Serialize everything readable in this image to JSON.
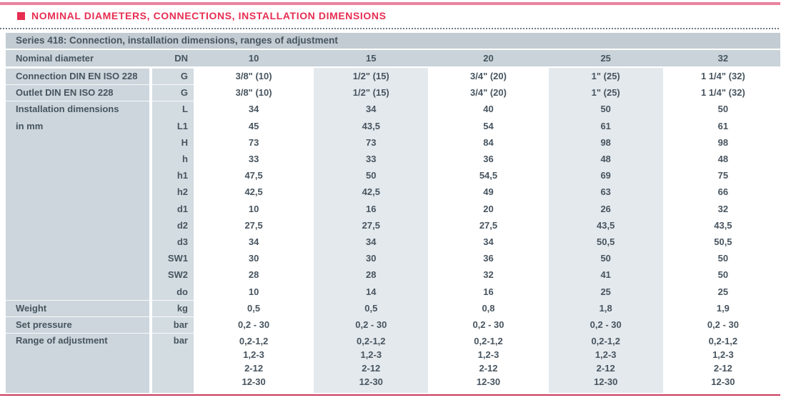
{
  "page": {
    "title": "NOMINAL DIAMETERS, CONNECTIONS, INSTALLATION DIMENSIONS"
  },
  "colors": {
    "accent": "#e72e52",
    "top_line": "#e9829e",
    "bottom_line": "#c93a5e",
    "header_bar_bg": "#c3ccd3",
    "row_header_bg": "#c9d3d9",
    "label_bg": "#ccd6dc",
    "unit_bg": "#d3dce1",
    "tint_column_bg": "#e4e9ed",
    "text": "#47545f"
  },
  "table": {
    "series_title": "Series 418: Connection, installation dimensions, ranges of adjustment",
    "header_row": {
      "label": "Nominal diameter",
      "unit": "DN",
      "values": [
        "10",
        "15",
        "20",
        "25",
        "32"
      ]
    },
    "rows": [
      {
        "label": "Connection DIN EN ISO 228",
        "unit": "G",
        "sep": true,
        "values": [
          "3/8\" (10)",
          "1/2\" (15)",
          "3/4\" (20)",
          "1\" (25)",
          "1 1/4\" (32)"
        ]
      },
      {
        "label": "Outlet DIN EN ISO 228",
        "unit": "G",
        "sep": true,
        "values": [
          "3/8\" (10)",
          "1/2\" (15)",
          "3/4\" (20)",
          "1\" (25)",
          "1 1/4\" (32)"
        ]
      },
      {
        "label": "Installation dimensions",
        "unit": "L",
        "sep": true,
        "values": [
          "34",
          "34",
          "40",
          "50",
          "50"
        ]
      },
      {
        "label": "in mm",
        "unit": "L1",
        "values": [
          "45",
          "43,5",
          "54",
          "61",
          "61"
        ]
      },
      {
        "label": "",
        "unit": "H",
        "values": [
          "73",
          "73",
          "84",
          "98",
          "98"
        ]
      },
      {
        "label": "",
        "unit": "h",
        "values": [
          "33",
          "33",
          "36",
          "48",
          "48"
        ]
      },
      {
        "label": "",
        "unit": "h1",
        "values": [
          "47,5",
          "50",
          "54,5",
          "69",
          "75"
        ]
      },
      {
        "label": "",
        "unit": "h2",
        "values": [
          "42,5",
          "42,5",
          "49",
          "63",
          "66"
        ]
      },
      {
        "label": "",
        "unit": "d1",
        "values": [
          "10",
          "16",
          "20",
          "26",
          "32"
        ]
      },
      {
        "label": "",
        "unit": "d2",
        "values": [
          "27,5",
          "27,5",
          "27,5",
          "43,5",
          "43,5"
        ]
      },
      {
        "label": "",
        "unit": "d3",
        "values": [
          "34",
          "34",
          "34",
          "50,5",
          "50,5"
        ]
      },
      {
        "label": "",
        "unit": "SW1",
        "values": [
          "30",
          "30",
          "36",
          "50",
          "50"
        ]
      },
      {
        "label": "",
        "unit": "SW2",
        "values": [
          "28",
          "28",
          "32",
          "41",
          "50"
        ]
      },
      {
        "label": "",
        "unit": "do",
        "values": [
          "10",
          "14",
          "16",
          "25",
          "25"
        ]
      },
      {
        "label": "Weight",
        "unit": "kg",
        "sep": true,
        "values": [
          "0,5",
          "0,5",
          "0,8",
          "1,8",
          "1,9"
        ]
      },
      {
        "label": "Set pressure",
        "unit": "bar",
        "sep": true,
        "values": [
          "0,2 - 30",
          "0,2 - 30",
          "0,2 - 30",
          "0,2 - 30",
          "0,2 - 30"
        ]
      },
      {
        "label": "Range of adjustment",
        "unit": "bar",
        "sep": true,
        "tall": true,
        "values": [
          [
            "0,2-1,2",
            "1,2-3",
            "2-12",
            "12-30"
          ],
          [
            "0,2-1,2",
            "1,2-3",
            "2-12",
            "12-30"
          ],
          [
            "0,2-1,2",
            "1,2-3",
            "2-12",
            "12-30"
          ],
          [
            "0,2-1,2",
            "1,2-3",
            "2-12",
            "12-30"
          ],
          [
            "0,2-1,2",
            "1,2-3",
            "2-12",
            "12-30"
          ]
        ]
      }
    ]
  }
}
